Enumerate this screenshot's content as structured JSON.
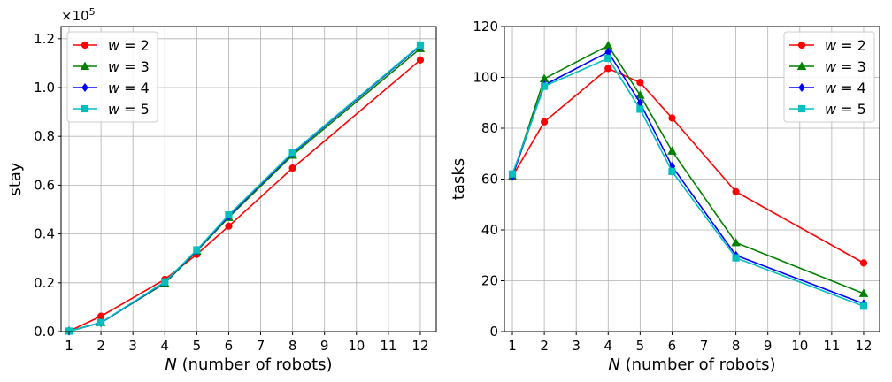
{
  "chart_data": [
    {
      "type": "line",
      "ylabel": "stay",
      "xlabel_var": "N",
      "xlabel_rest": " (number of robots)",
      "offset_text": "×10",
      "offset_exp": "5",
      "x": [
        1,
        2,
        4,
        5,
        6,
        8,
        12
      ],
      "xticks": [
        1,
        2,
        3,
        4,
        5,
        6,
        7,
        8,
        9,
        10,
        11,
        12
      ],
      "xlim": [
        0.75,
        12.5
      ],
      "yticks": [
        0.0,
        0.2,
        0.4,
        0.6,
        0.8,
        1.0,
        1.2
      ],
      "ytick_labels": [
        "0.0",
        "0.2",
        "0.4",
        "0.6",
        "0.8",
        "1.0",
        "1.2"
      ],
      "ylim": [
        0,
        1.25
      ],
      "grid": true,
      "legend": "upper-left",
      "series": [
        {
          "name_var": "w",
          "name_rest": " = 2",
          "marker": "circle",
          "color": "#ff0000",
          "values": [
            0.002,
            0.063,
            0.214,
            0.316,
            0.432,
            0.67,
            1.113
          ]
        },
        {
          "name_var": "w",
          "name_rest": " = 3",
          "marker": "triangle",
          "color": "#008000",
          "values": [
            0.002,
            0.037,
            0.198,
            0.33,
            0.468,
            0.723,
            1.16
          ]
        },
        {
          "name_var": "w",
          "name_rest": " = 4",
          "marker": "diamond",
          "color": "#0000ff",
          "values": [
            0.002,
            0.036,
            0.202,
            0.333,
            0.474,
            0.731,
            1.171
          ]
        },
        {
          "name_var": "w",
          "name_rest": " = 5",
          "marker": "square",
          "color": "#00bfbf",
          "values": [
            0.002,
            0.037,
            0.204,
            0.335,
            0.478,
            0.734,
            1.174
          ]
        }
      ]
    },
    {
      "type": "line",
      "ylabel": "tasks",
      "xlabel_var": "N",
      "xlabel_rest": " (number of robots)",
      "x": [
        1,
        2,
        4,
        5,
        6,
        8,
        12
      ],
      "xticks": [
        1,
        2,
        3,
        4,
        5,
        6,
        7,
        8,
        9,
        10,
        11,
        12
      ],
      "xlim": [
        0.75,
        12.5
      ],
      "yticks": [
        0,
        20,
        40,
        60,
        80,
        100,
        120
      ],
      "ytick_labels": [
        "0",
        "20",
        "40",
        "60",
        "80",
        "100",
        "120"
      ],
      "ylim": [
        0,
        120
      ],
      "grid": true,
      "legend": "upper-right",
      "series": [
        {
          "name_var": "w",
          "name_rest": " = 2",
          "marker": "circle",
          "color": "#ff0000",
          "values": [
            61.0,
            82.5,
            103.5,
            98.0,
            84.0,
            55.0,
            27.0
          ]
        },
        {
          "name_var": "w",
          "name_rest": " = 3",
          "marker": "triangle",
          "color": "#008000",
          "values": [
            61.0,
            99.5,
            112.5,
            93.0,
            71.0,
            35.0,
            15.0
          ]
        },
        {
          "name_var": "w",
          "name_rest": " = 4",
          "marker": "diamond",
          "color": "#0000ff",
          "values": [
            61.0,
            97.0,
            110.0,
            90.0,
            65.0,
            30.0,
            11.0
          ]
        },
        {
          "name_var": "w",
          "name_rest": " = 5",
          "marker": "square",
          "color": "#00bfbf",
          "values": [
            62.0,
            96.5,
            107.5,
            87.5,
            63.0,
            29.0,
            10.0
          ]
        }
      ]
    }
  ]
}
